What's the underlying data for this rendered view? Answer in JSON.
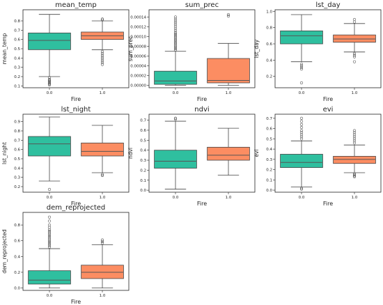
{
  "figure": {
    "box_colors": {
      "0.0": "#2fbf9f",
      "1.0": "#fc8d62"
    },
    "median_color": "#555555",
    "whisker_color": "#444444"
  },
  "chart_data": [
    {
      "type": "boxplot",
      "title": "mean_temp",
      "xlabel": "Fire",
      "ylabel": "mean_temp",
      "ylim": [
        0.08,
        0.92
      ],
      "yticks": [
        0.1,
        0.2,
        0.3,
        0.4,
        0.5,
        0.6,
        0.7,
        0.8
      ],
      "ytick_labels": [
        "0.1",
        "0.2",
        "0.3",
        "0.4",
        "0.5",
        "0.6",
        "0.7",
        "0.8"
      ],
      "categories": [
        "0.0",
        "1.0"
      ],
      "boxes": [
        {
          "category": "0.0",
          "whislo": 0.2,
          "q1": 0.49,
          "med": 0.59,
          "q3": 0.67,
          "whishi": 0.87,
          "fliers": [
            0.19,
            0.17,
            0.16,
            0.15,
            0.14,
            0.13,
            0.12,
            0.11
          ]
        },
        {
          "category": "1.0",
          "whislo": 0.49,
          "q1": 0.6,
          "med": 0.64,
          "q3": 0.68,
          "whishi": 0.8,
          "fliers": [
            0.82,
            0.81,
            0.47,
            0.45,
            0.43,
            0.41,
            0.39,
            0.37,
            0.35,
            0.33
          ]
        }
      ]
    },
    {
      "type": "boxplot",
      "title": "sum_prec",
      "xlabel": "Fire",
      "ylabel": "sum_prec",
      "ylim": [
        -5e-06,
        0.000155
      ],
      "yticks": [
        0,
        2e-05,
        4e-05,
        6e-05,
        8e-05,
        0.0001,
        0.00012,
        0.00014
      ],
      "ytick_labels": [
        "0.00000",
        "0.00002",
        "0.00004",
        "0.00006",
        "0.00008",
        "0.00010",
        "0.00012",
        "0.00014"
      ],
      "categories": [
        "0.0",
        "1.0"
      ],
      "boxes": [
        {
          "category": "0.0",
          "whislo": 0,
          "q1": 2e-06,
          "med": 9e-06,
          "q3": 2.9e-05,
          "whishi": 7e-05,
          "fliers": [
            7.2e-05,
            7.5e-05,
            7.8e-05,
            8.1e-05,
            8.4e-05,
            8.7e-05,
            9e-05,
            9.3e-05,
            9.6e-05,
            9.9e-05,
            0.000102,
            0.000105,
            0.000108,
            0.000112,
            0.000116,
            0.00012,
            0.000124,
            0.000128,
            0.000132,
            0.000136,
            0.00014
          ]
        },
        {
          "category": "1.0",
          "whislo": 0,
          "q1": 5e-06,
          "med": 1e-05,
          "q3": 5.5e-05,
          "whishi": 8.6e-05,
          "fliers": [
            0.000142,
            0.000145
          ]
        }
      ]
    },
    {
      "type": "boxplot",
      "title": "lst_day",
      "xlabel": "Fire",
      "ylabel": "lst_day",
      "ylim": [
        0.06,
        1.02
      ],
      "yticks": [
        0.2,
        0.4,
        0.6,
        0.8,
        1.0
      ],
      "ytick_labels": [
        "0.2",
        "0.4",
        "0.6",
        "0.8",
        "1.0"
      ],
      "categories": [
        "0.0",
        "1.0"
      ],
      "boxes": [
        {
          "category": "0.0",
          "whislo": 0.38,
          "q1": 0.6,
          "med": 0.7,
          "q3": 0.76,
          "whishi": 0.96,
          "fliers": [
            0.35,
            0.33,
            0.31,
            0.29,
            0.12
          ]
        },
        {
          "category": "1.0",
          "whislo": 0.5,
          "q1": 0.62,
          "med": 0.66,
          "q3": 0.71,
          "whishi": 0.85,
          "fliers": [
            0.87,
            0.9,
            0.48,
            0.46,
            0.44,
            0.38
          ]
        }
      ]
    },
    {
      "type": "boxplot",
      "title": "lst_night",
      "xlabel": "Fire",
      "ylabel": "lst_night",
      "ylim": [
        0.14,
        0.98
      ],
      "yticks": [
        0.2,
        0.3,
        0.4,
        0.5,
        0.6,
        0.7,
        0.8,
        0.9
      ],
      "ytick_labels": [
        "0.2",
        "0.3",
        "0.4",
        "0.5",
        "0.6",
        "0.7",
        "0.8",
        "0.9"
      ],
      "categories": [
        "0.0",
        "1.0"
      ],
      "boxes": [
        {
          "category": "0.0",
          "whislo": 0.26,
          "q1": 0.53,
          "med": 0.66,
          "q3": 0.74,
          "whishi": 0.95,
          "fliers": [
            0.17
          ]
        },
        {
          "category": "1.0",
          "whislo": 0.35,
          "q1": 0.53,
          "med": 0.58,
          "q3": 0.67,
          "whishi": 0.86,
          "fliers": [
            0.33,
            0.32
          ]
        }
      ]
    },
    {
      "type": "boxplot",
      "title": "ndvi",
      "xlabel": "Fire",
      "ylabel": "ndvi",
      "ylim": [
        -0.02,
        0.76
      ],
      "yticks": [
        0,
        0.1,
        0.2,
        0.3,
        0.4,
        0.5,
        0.6,
        0.7
      ],
      "ytick_labels": [
        "0.0",
        "0.1",
        "0.2",
        "0.3",
        "0.4",
        "0.5",
        "0.6",
        "0.7"
      ],
      "categories": [
        "0.0",
        "1.0"
      ],
      "boxes": [
        {
          "category": "0.0",
          "whislo": 0.01,
          "q1": 0.22,
          "med": 0.29,
          "q3": 0.4,
          "whishi": 0.69,
          "fliers": [
            0.71,
            0.72
          ]
        },
        {
          "category": "1.0",
          "whislo": 0.15,
          "q1": 0.3,
          "med": 0.35,
          "q3": 0.43,
          "whishi": 0.62,
          "fliers": []
        }
      ]
    },
    {
      "type": "boxplot",
      "title": "evi",
      "xlabel": "Fire",
      "ylabel": "evi",
      "ylim": [
        -0.02,
        0.74
      ],
      "yticks": [
        0,
        0.1,
        0.2,
        0.3,
        0.4,
        0.5,
        0.6,
        0.7
      ],
      "ytick_labels": [
        "0.0",
        "0.1",
        "0.2",
        "0.3",
        "0.4",
        "0.5",
        "0.6",
        "0.7"
      ],
      "categories": [
        "0.0",
        "1.0"
      ],
      "boxes": [
        {
          "category": "0.0",
          "whislo": 0.03,
          "q1": 0.22,
          "med": 0.27,
          "q3": 0.35,
          "whishi": 0.48,
          "fliers": [
            0.5,
            0.52,
            0.54,
            0.56,
            0.58,
            0.61,
            0.64,
            0.67,
            0.7,
            0.02,
            0.01
          ]
        },
        {
          "category": "1.0",
          "whislo": 0.17,
          "q1": 0.26,
          "med": 0.3,
          "q3": 0.33,
          "whishi": 0.44,
          "fliers": [
            0.46,
            0.48,
            0.5,
            0.52,
            0.54,
            0.56,
            0.58,
            0.16,
            0.15,
            0.14,
            0.13
          ]
        }
      ]
    },
    {
      "type": "boxplot",
      "title": "dem_reprojected",
      "xlabel": "Fire",
      "ylabel": "dem_reprojected",
      "ylim": [
        -0.03,
        0.96
      ],
      "yticks": [
        0,
        0.2,
        0.4,
        0.6,
        0.8
      ],
      "ytick_labels": [
        "0.0",
        "0.2",
        "0.4",
        "0.6",
        "0.8"
      ],
      "categories": [
        "0.0",
        "1.0"
      ],
      "boxes": [
        {
          "category": "0.0",
          "whislo": 0.0,
          "q1": 0.05,
          "med": 0.1,
          "q3": 0.22,
          "whishi": 0.5,
          "fliers": [
            0.52,
            0.54,
            0.56,
            0.58,
            0.6,
            0.62,
            0.64,
            0.66,
            0.68,
            0.7,
            0.72,
            0.74,
            0.77,
            0.8,
            0.85,
            0.9
          ]
        },
        {
          "category": "1.0",
          "whislo": 0.0,
          "q1": 0.12,
          "med": 0.2,
          "q3": 0.29,
          "whishi": 0.55,
          "fliers": [
            0.57,
            0.59,
            0.61
          ]
        }
      ]
    }
  ]
}
